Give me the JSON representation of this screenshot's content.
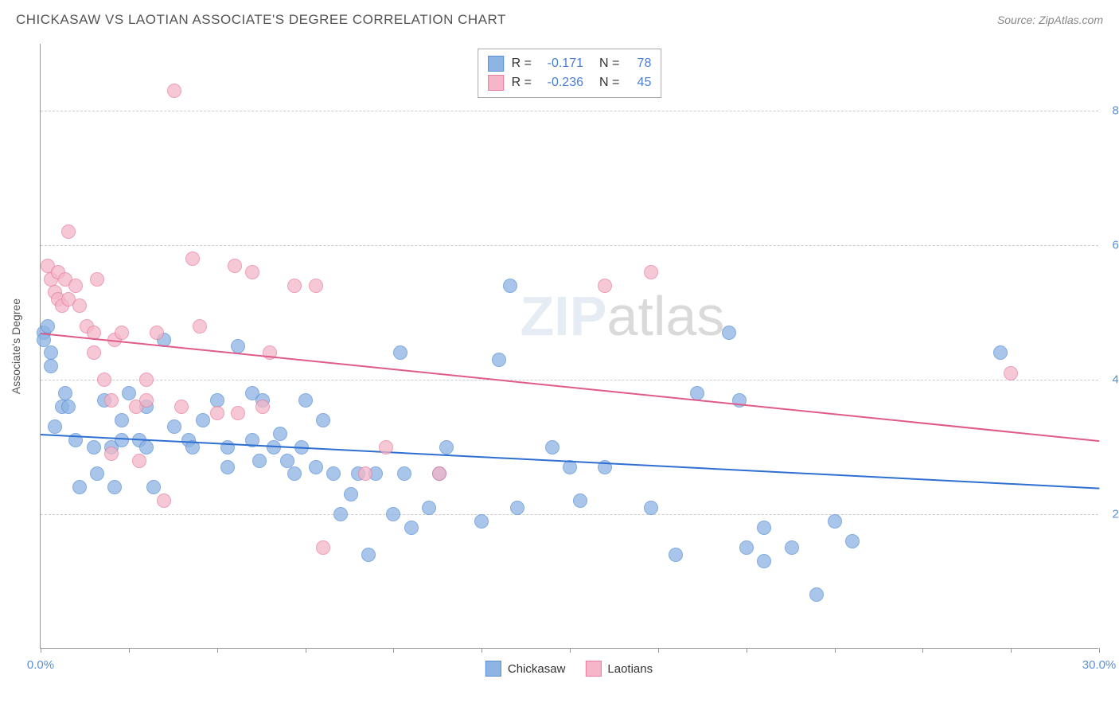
{
  "title": "CHICKASAW VS LAOTIAN ASSOCIATE'S DEGREE CORRELATION CHART",
  "source": "Source: ZipAtlas.com",
  "y_axis_label": "Associate's Degree",
  "watermark_zip": "ZIP",
  "watermark_atlas": "atlas",
  "chart": {
    "type": "scatter",
    "background_color": "#ffffff",
    "grid_color": "#cccccc",
    "axis_color": "#999999",
    "x_range": [
      0,
      30
    ],
    "y_range": [
      0,
      90
    ],
    "x_ticks": [
      0,
      2.5,
      5,
      7.5,
      10,
      12.5,
      15,
      17.5,
      20,
      22.5,
      25,
      27.5,
      30
    ],
    "x_tick_labels": {
      "0": "0.0%",
      "30": "30.0%"
    },
    "y_gridlines": [
      20,
      40,
      60,
      80
    ],
    "y_tick_labels": {
      "20": "20.0%",
      "40": "40.0%",
      "60": "60.0%",
      "80": "80.0%"
    },
    "point_radius": 9,
    "point_stroke_width": 1.2,
    "point_fill_opacity": 0.35
  },
  "series": [
    {
      "name": "Chickasaw",
      "color_fill": "#8db4e3",
      "color_stroke": "#5a8fd6",
      "trend_color": "#2e6fd1",
      "R": "-0.171",
      "N": "78",
      "trend": {
        "x1": 0,
        "y1": 32,
        "x2": 30,
        "y2": 24
      },
      "points": [
        [
          0.1,
          47
        ],
        [
          0.1,
          46
        ],
        [
          0.2,
          48
        ],
        [
          0.3,
          44
        ],
        [
          0.3,
          42
        ],
        [
          0.4,
          33
        ],
        [
          0.6,
          36
        ],
        [
          0.7,
          38
        ],
        [
          0.8,
          36
        ],
        [
          1.0,
          31
        ],
        [
          1.1,
          24
        ],
        [
          1.5,
          30
        ],
        [
          1.6,
          26
        ],
        [
          1.8,
          37
        ],
        [
          2.0,
          30
        ],
        [
          2.1,
          24
        ],
        [
          2.3,
          31
        ],
        [
          2.3,
          34
        ],
        [
          2.5,
          38
        ],
        [
          2.8,
          31
        ],
        [
          3.0,
          36
        ],
        [
          3.0,
          30
        ],
        [
          3.2,
          24
        ],
        [
          3.5,
          46
        ],
        [
          3.8,
          33
        ],
        [
          4.2,
          31
        ],
        [
          4.3,
          30
        ],
        [
          4.6,
          34
        ],
        [
          5.0,
          37
        ],
        [
          5.3,
          30
        ],
        [
          5.3,
          27
        ],
        [
          5.6,
          45
        ],
        [
          6.0,
          38
        ],
        [
          6.0,
          31
        ],
        [
          6.2,
          28
        ],
        [
          6.3,
          37
        ],
        [
          6.6,
          30
        ],
        [
          6.8,
          32
        ],
        [
          7.0,
          28
        ],
        [
          7.2,
          26
        ],
        [
          7.4,
          30
        ],
        [
          7.5,
          37
        ],
        [
          7.8,
          27
        ],
        [
          8.0,
          34
        ],
        [
          8.3,
          26
        ],
        [
          8.5,
          20
        ],
        [
          8.8,
          23
        ],
        [
          9.0,
          26
        ],
        [
          9.3,
          14
        ],
        [
          9.5,
          26
        ],
        [
          10.0,
          20
        ],
        [
          10.2,
          44
        ],
        [
          10.3,
          26
        ],
        [
          10.5,
          18
        ],
        [
          11.0,
          21
        ],
        [
          11.3,
          26
        ],
        [
          11.5,
          30
        ],
        [
          12.5,
          19
        ],
        [
          13.0,
          43
        ],
        [
          13.3,
          54
        ],
        [
          13.5,
          21
        ],
        [
          14.5,
          30
        ],
        [
          15.0,
          27
        ],
        [
          15.3,
          22
        ],
        [
          16.0,
          27
        ],
        [
          17.3,
          21
        ],
        [
          18.0,
          14
        ],
        [
          18.6,
          38
        ],
        [
          19.5,
          47
        ],
        [
          19.8,
          37
        ],
        [
          20.0,
          15
        ],
        [
          20.5,
          18
        ],
        [
          20.5,
          13
        ],
        [
          21.3,
          15
        ],
        [
          22.0,
          8
        ],
        [
          22.5,
          19
        ],
        [
          23.0,
          16
        ],
        [
          27.2,
          44
        ]
      ]
    },
    {
      "name": "Laotians",
      "color_fill": "#f4b6c8",
      "color_stroke": "#e77ea0",
      "trend_color": "#e05a8a",
      "R": "-0.236",
      "N": "45",
      "trend": {
        "x1": 0,
        "y1": 47,
        "x2": 30,
        "y2": 31
      },
      "points": [
        [
          0.2,
          57
        ],
        [
          0.3,
          55
        ],
        [
          0.4,
          53
        ],
        [
          0.5,
          56
        ],
        [
          0.5,
          52
        ],
        [
          0.6,
          51
        ],
        [
          0.7,
          55
        ],
        [
          0.8,
          62
        ],
        [
          0.8,
          52
        ],
        [
          1.0,
          54
        ],
        [
          1.1,
          51
        ],
        [
          1.3,
          48
        ],
        [
          1.5,
          47
        ],
        [
          1.5,
          44
        ],
        [
          1.6,
          55
        ],
        [
          1.8,
          40
        ],
        [
          2.0,
          29
        ],
        [
          2.0,
          37
        ],
        [
          2.1,
          46
        ],
        [
          2.3,
          47
        ],
        [
          2.7,
          36
        ],
        [
          2.8,
          28
        ],
        [
          3.0,
          40
        ],
        [
          3.0,
          37
        ],
        [
          3.3,
          47
        ],
        [
          3.5,
          22
        ],
        [
          3.8,
          83
        ],
        [
          4.0,
          36
        ],
        [
          4.3,
          58
        ],
        [
          4.5,
          48
        ],
        [
          5.0,
          35
        ],
        [
          5.5,
          57
        ],
        [
          5.6,
          35
        ],
        [
          6.0,
          56
        ],
        [
          6.3,
          36
        ],
        [
          6.5,
          44
        ],
        [
          7.2,
          54
        ],
        [
          7.8,
          54
        ],
        [
          8.0,
          15
        ],
        [
          9.2,
          26
        ],
        [
          9.8,
          30
        ],
        [
          11.3,
          26
        ],
        [
          16.0,
          54
        ],
        [
          17.3,
          56
        ],
        [
          27.5,
          41
        ]
      ]
    }
  ],
  "legend": {
    "items": [
      {
        "label": "Chickasaw",
        "fill": "#8db4e3",
        "stroke": "#5a8fd6"
      },
      {
        "label": "Laotians",
        "fill": "#f4b6c8",
        "stroke": "#e77ea0"
      }
    ]
  },
  "stats_box": {
    "R_label": "R =",
    "N_label": "N ="
  }
}
